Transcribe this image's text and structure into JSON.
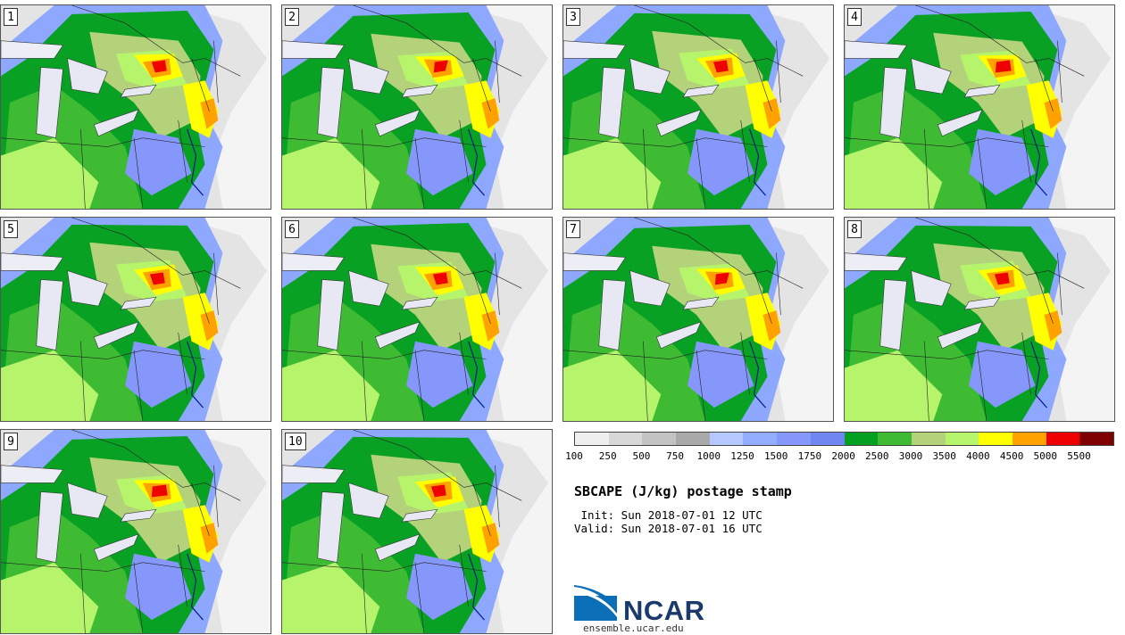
{
  "panels": [
    {
      "label": "1"
    },
    {
      "label": "2"
    },
    {
      "label": "3"
    },
    {
      "label": "4"
    },
    {
      "label": "5"
    },
    {
      "label": "6"
    },
    {
      "label": "7"
    },
    {
      "label": "8"
    },
    {
      "label": "9"
    },
    {
      "label": "10"
    }
  ],
  "colorbar": {
    "colors": [
      "#f0f0f0",
      "#d8d8d8",
      "#c3c3c3",
      "#a9a9a9",
      "#b5c8ff",
      "#93aeff",
      "#8597fb",
      "#7087f2",
      "#03a022",
      "#3fbb33",
      "#b4d27a",
      "#b6f46c",
      "#ffff00",
      "#ffa200",
      "#ef0000",
      "#7f0000"
    ],
    "tick_labels": [
      "100",
      "250",
      "500",
      "750",
      "1000",
      "1250",
      "1500",
      "1750",
      "2000",
      "2500",
      "3000",
      "3500",
      "4000",
      "4500",
      "5000",
      "5500"
    ]
  },
  "title": "SBCAPE (J/kg) postage stamp",
  "init_line": " Init: Sun 2018-07-01 12 UTC",
  "valid_line": "Valid: Sun 2018-07-01 16 UTC",
  "logo": {
    "name": "NCAR",
    "color": "#0a6fb7",
    "site": "ensemble.ucar.edu"
  }
}
